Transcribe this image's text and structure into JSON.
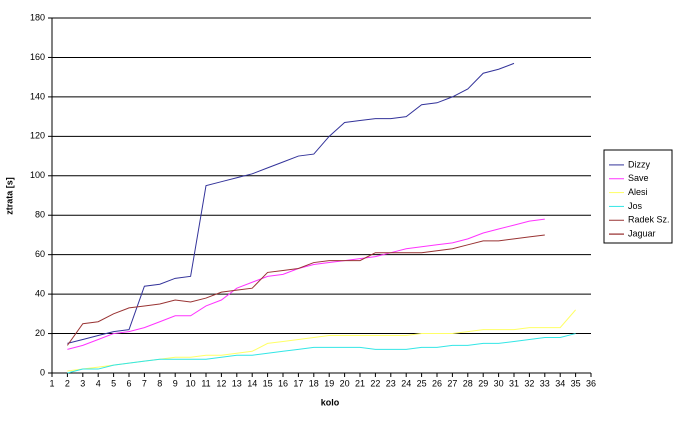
{
  "chart_data": {
    "type": "line",
    "x_label": "kolo",
    "y_label": "ztrata [s]",
    "x": [
      2,
      3,
      4,
      5,
      6,
      7,
      8,
      9,
      10,
      11,
      12,
      13,
      14,
      15,
      16,
      17,
      18,
      19,
      20,
      21,
      22,
      23,
      24,
      25,
      26,
      27,
      28,
      29,
      30,
      31,
      32,
      33,
      34,
      35
    ],
    "series": [
      {
        "name": "Dizzy",
        "color": "#33339a",
        "values": [
          15,
          17,
          19,
          21,
          22,
          44,
          45,
          48,
          49,
          95,
          97,
          99,
          101,
          104,
          107,
          110,
          111,
          120,
          127,
          128,
          129,
          129,
          130,
          136,
          137,
          140,
          144,
          152,
          154,
          157,
          null,
          null,
          null,
          null
        ]
      },
      {
        "name": "Save",
        "color": "#ff33ff",
        "values": [
          12,
          14,
          17,
          20,
          21,
          23,
          26,
          29,
          29,
          34,
          37,
          43,
          46,
          49,
          50,
          53,
          55,
          56,
          57,
          58,
          59,
          61,
          63,
          64,
          65,
          66,
          68,
          71,
          73,
          75,
          77,
          78,
          null,
          null
        ]
      },
      {
        "name": "Alesi",
        "color": "#ffff66",
        "values": [
          1,
          2,
          3,
          4,
          5,
          6,
          7,
          8,
          8,
          9,
          9,
          10,
          11,
          15,
          16,
          17,
          18,
          19,
          19,
          19,
          19,
          19,
          19,
          20,
          20,
          20,
          21,
          22,
          22,
          22,
          23,
          23,
          23,
          32
        ]
      },
      {
        "name": "Jos",
        "color": "#33e6e6",
        "values": [
          0,
          2,
          2,
          4,
          5,
          6,
          7,
          7,
          7,
          7,
          8,
          9,
          9,
          10,
          11,
          12,
          13,
          13,
          13,
          13,
          12,
          12,
          12,
          13,
          13,
          14,
          14,
          15,
          15,
          16,
          17,
          18,
          18,
          20
        ]
      },
      {
        "name": "Radek Sz.",
        "color": "#993333",
        "values": [
          14,
          25,
          26,
          30,
          33,
          34,
          35,
          37,
          36,
          38,
          41,
          42,
          43,
          51,
          52,
          53,
          56,
          57,
          57,
          57,
          61,
          61,
          61,
          61,
          62,
          63,
          65,
          67,
          67,
          68,
          69,
          70,
          null,
          null
        ]
      },
      {
        "name": "Jaguar",
        "color": "#800000",
        "values": [
          null,
          null,
          null,
          null,
          null,
          null,
          null,
          null,
          null,
          null,
          null,
          null,
          null,
          null,
          null,
          null,
          null,
          null,
          null,
          null,
          null,
          null,
          null,
          null,
          null,
          null,
          null,
          null,
          null,
          null,
          null,
          null,
          null,
          null
        ]
      }
    ],
    "xlim": [
      1,
      36
    ],
    "xticks": [
      1,
      2,
      3,
      4,
      5,
      6,
      7,
      8,
      9,
      10,
      11,
      12,
      13,
      14,
      15,
      16,
      17,
      18,
      19,
      20,
      21,
      22,
      23,
      24,
      25,
      26,
      27,
      28,
      29,
      30,
      31,
      32,
      33,
      34,
      35,
      36
    ],
    "ylim": [
      0,
      180
    ],
    "yticks": [
      0,
      20,
      40,
      60,
      80,
      100,
      120,
      140,
      160,
      180
    ],
    "grid": true,
    "legend": "right"
  }
}
